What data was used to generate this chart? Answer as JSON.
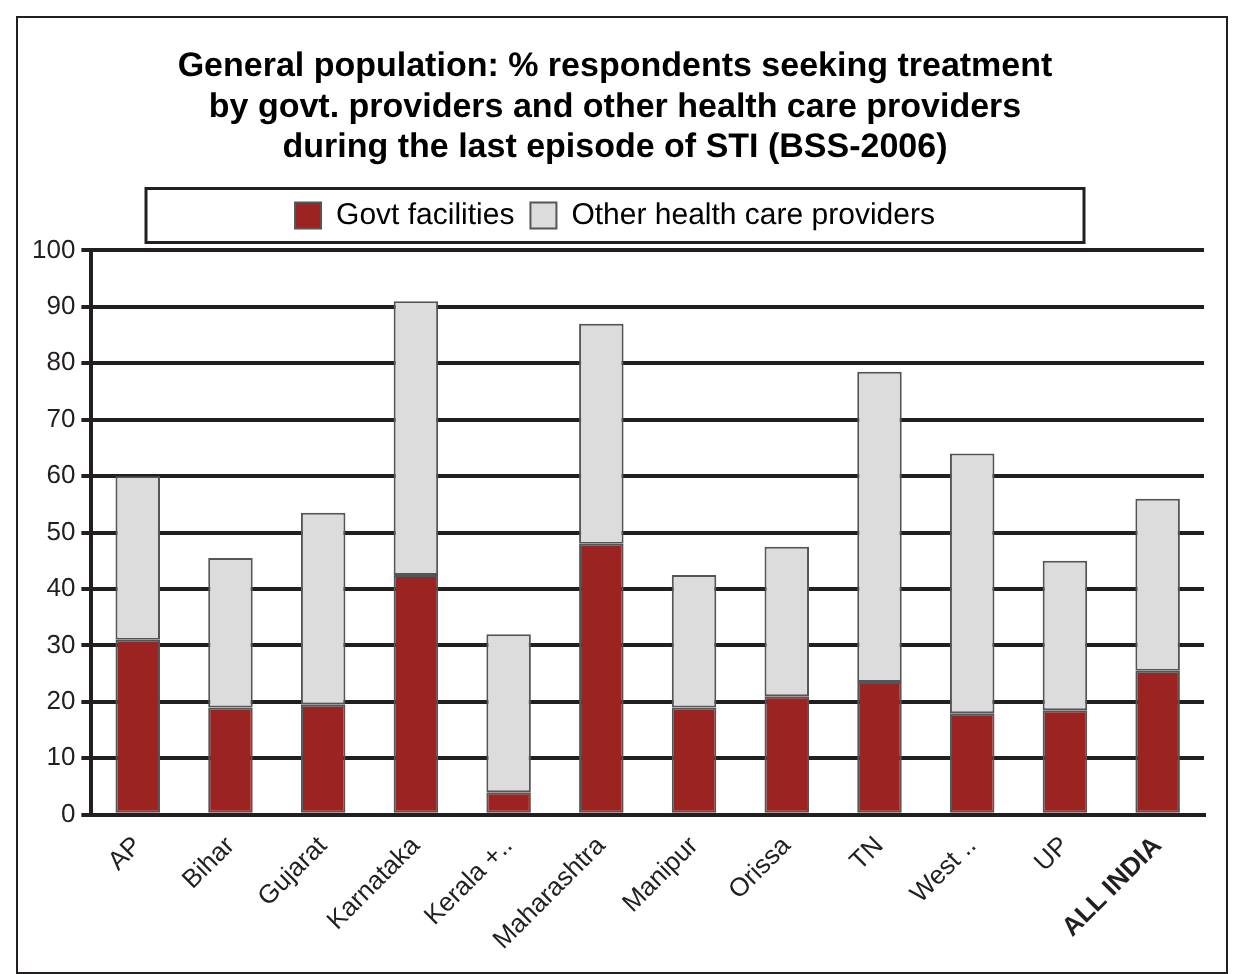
{
  "chart_data": {
    "type": "bar",
    "title": "General population: % respondents seeking treatment by govt. providers and other health care providers during the last episode of STI (BSS-2006)",
    "categories": [
      "AP",
      "Bihar",
      "Gujarat",
      "Karnataka",
      "Kerala +..",
      "Maharashtra",
      "Manipur",
      "Orissa",
      "TN",
      "West ..",
      "UP",
      "ALL INDIA"
    ],
    "stacked": true,
    "series": [
      {
        "name": "Govt facilities",
        "color": "#9b2423",
        "values": [
          31,
          19,
          19.5,
          42.5,
          4,
          48,
          19,
          21,
          23.5,
          18,
          18.5,
          25.5
        ]
      },
      {
        "name": "Other health care providers",
        "color": "#dcdcdc",
        "values": [
          29,
          26.5,
          34,
          48.5,
          28,
          39,
          23.5,
          26.5,
          55,
          46,
          26.5,
          30.5
        ]
      }
    ],
    "ylim": [
      0,
      100
    ],
    "yticks": [
      0,
      10,
      20,
      30,
      40,
      50,
      60,
      70,
      80,
      90,
      100
    ],
    "grid": "y",
    "legend": "top"
  }
}
